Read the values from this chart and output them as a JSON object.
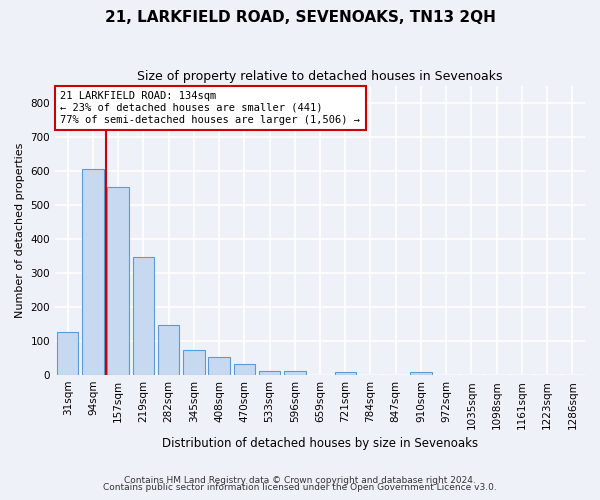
{
  "title": "21, LARKFIELD ROAD, SEVENOAKS, TN13 2QH",
  "subtitle": "Size of property relative to detached houses in Sevenoaks",
  "xlabel": "Distribution of detached houses by size in Sevenoaks",
  "ylabel": "Number of detached properties",
  "categories": [
    "31sqm",
    "94sqm",
    "157sqm",
    "219sqm",
    "282sqm",
    "345sqm",
    "408sqm",
    "470sqm",
    "533sqm",
    "596sqm",
    "659sqm",
    "721sqm",
    "784sqm",
    "847sqm",
    "910sqm",
    "972sqm",
    "1035sqm",
    "1098sqm",
    "1161sqm",
    "1223sqm",
    "1286sqm"
  ],
  "values": [
    125,
    605,
    553,
    348,
    147,
    73,
    53,
    33,
    13,
    13,
    0,
    10,
    0,
    0,
    8,
    0,
    0,
    0,
    0,
    0,
    0
  ],
  "bar_color": "#c6d9f0",
  "bar_edge_color": "#5b9bd5",
  "vline_x": 1.5,
  "vline_color": "#cc0000",
  "annotation_box_color": "#cc0000",
  "marker_label": "21 LARKFIELD ROAD: 134sqm",
  "annotation_line1": "← 23% of detached houses are smaller (441)",
  "annotation_line2": "77% of semi-detached houses are larger (1,506) →",
  "ylim": [
    0,
    850
  ],
  "yticks": [
    0,
    100,
    200,
    300,
    400,
    500,
    600,
    700,
    800
  ],
  "footnote1": "Contains HM Land Registry data © Crown copyright and database right 2024.",
  "footnote2": "Contains public sector information licensed under the Open Government Licence v3.0.",
  "bg_color": "#eef2f8",
  "grid_color": "#ffffff",
  "title_fontsize": 11,
  "subtitle_fontsize": 9,
  "ylabel_fontsize": 8,
  "xlabel_fontsize": 8.5,
  "tick_fontsize": 7.5,
  "annot_fontsize": 7.5,
  "footnote_fontsize": 6.5
}
